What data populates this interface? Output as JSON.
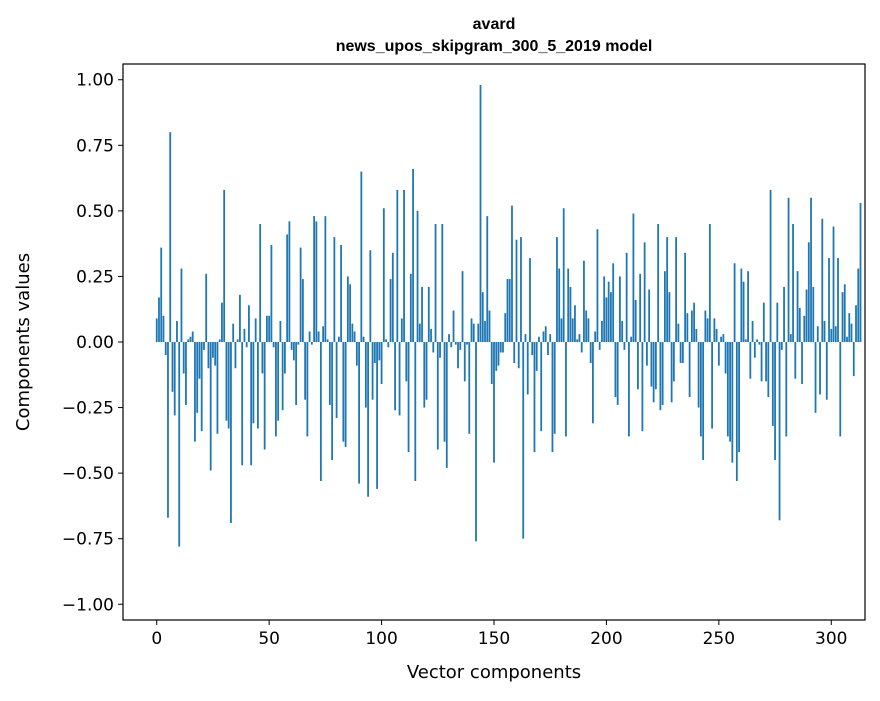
{
  "chart_data": {
    "type": "bar",
    "title": "avard",
    "subtitle": "news_upos_skipgram_300_5_2019 model",
    "xlabel": "Vector components",
    "ylabel": "Components values",
    "xlim": [
      -15,
      315
    ],
    "ylim": [
      -1.06,
      1.06
    ],
    "xticks": [
      0,
      50,
      100,
      150,
      200,
      250,
      300
    ],
    "xtick_labels": [
      "0",
      "50",
      "100",
      "150",
      "200",
      "250",
      "300"
    ],
    "yticks": [
      1.0,
      0.75,
      0.5,
      0.25,
      0.0,
      -0.25,
      -0.5,
      -0.75,
      -1.0
    ],
    "ytick_labels": [
      "1.00",
      "0.75",
      "0.50",
      "0.25",
      "0.00",
      "−0.25",
      "−0.50",
      "−0.75",
      "−1.00"
    ],
    "bar_color": "#1f77b4",
    "grid": false,
    "values": [
      0.09,
      0.17,
      0.36,
      0.1,
      -0.05,
      -0.67,
      0.8,
      -0.19,
      -0.28,
      0.08,
      -0.78,
      0.28,
      -0.12,
      -0.24,
      0.01,
      0.02,
      0.04,
      -0.38,
      -0.27,
      -0.14,
      -0.34,
      -0.03,
      0.26,
      -0.1,
      -0.49,
      -0.06,
      -0.09,
      -0.35,
      0.01,
      0.15,
      0.58,
      -0.3,
      -0.33,
      -0.69,
      0.07,
      -0.1,
      0.01,
      0.18,
      -0.47,
      0.05,
      -0.02,
      0.14,
      -0.47,
      -0.31,
      0.09,
      -0.33,
      0.45,
      -0.12,
      -0.41,
      0.1,
      0.1,
      0.37,
      -0.02,
      -0.36,
      -0.3,
      0.08,
      -0.26,
      -0.12,
      0.41,
      0.46,
      -0.03,
      -0.07,
      -0.24,
      -0.01,
      0.36,
      0.24,
      -0.22,
      -0.36,
      0.04,
      -0.01,
      0.48,
      0.46,
      0.04,
      -0.53,
      0.06,
      0.48,
      0.01,
      -0.24,
      -0.45,
      0.4,
      -0.29,
      0.02,
      0.37,
      -0.38,
      -0.4,
      0.25,
      0.22,
      0.07,
      0.04,
      -0.09,
      -0.54,
      0.65,
      0.02,
      -0.25,
      -0.59,
      0.35,
      -0.22,
      -0.08,
      -0.56,
      -0.07,
      -0.16,
      0.51,
      0.01,
      -0.02,
      0.24,
      0.34,
      -0.26,
      0.58,
      -0.28,
      0.09,
      0.58,
      -0.15,
      -0.42,
      0.26,
      0.66,
      -0.53,
      0.5,
      0.07,
      0.21,
      -0.25,
      -0.22,
      0.21,
      0.05,
      -0.04,
      0.45,
      -0.41,
      -0.06,
      0.45,
      -0.38,
      -0.48,
      0.03,
      -0.02,
      0.12,
      -0.01,
      -0.1,
      -0.03,
      0.27,
      -0.15,
      -0.01,
      -0.35,
      0.09,
      0.07,
      -0.76,
      0.07,
      0.98,
      0.19,
      0.08,
      0.48,
      0.12,
      -0.16,
      -0.46,
      -0.11,
      -0.09,
      -0.04,
      -0.04,
      0.11,
      0.24,
      0.24,
      0.52,
      -0.08,
      0.39,
      -0.1,
      0.4,
      -0.75,
      0.03,
      -0.2,
      0.32,
      -0.05,
      -0.42,
      -0.11,
      0.02,
      -0.34,
      0.04,
      0.06,
      -0.05,
      0.03,
      -0.42,
      -0.35,
      0.4,
      0.28,
      0.09,
      0.51,
      -0.36,
      0.28,
      0.21,
      0.09,
      0.14,
      0.01,
      0.03,
      -0.04,
      0.31,
      0.12,
      0.09,
      -0.08,
      -0.31,
      0.04,
      0.43,
      -0.03,
      0.08,
      0.25,
      0.17,
      0.23,
      0.19,
      0.3,
      -0.21,
      -0.24,
      0.25,
      0.08,
      -0.03,
      0.34,
      -0.36,
      0.02,
      0.49,
      0.16,
      -0.18,
      0.26,
      -0.34,
      0.38,
      -0.09,
      0.2,
      -0.17,
      -0.23,
      -0.18,
      0.45,
      -0.26,
      -0.24,
      0.27,
      0.4,
      0.19,
      -0.23,
      -0.15,
      0.4,
      0.07,
      -0.08,
      -0.08,
      0.34,
      0.11,
      -0.21,
      0.12,
      0.15,
      0.05,
      -0.25,
      -0.36,
      -0.45,
      0.12,
      0.09,
      0.45,
      -0.33,
      0.09,
      0.05,
      -0.09,
      0.02,
      0.03,
      -0.12,
      -0.36,
      -0.38,
      -0.46,
      0.3,
      -0.53,
      -0.42,
      0.28,
      0.23,
      0.01,
      0.27,
      -0.14,
      0.08,
      -0.06,
      0.01,
      -0.01,
      -0.15,
      0.15,
      -0.15,
      -0.21,
      0.58,
      -0.32,
      -0.45,
      0.15,
      -0.68,
      -0.03,
      0.21,
      -0.36,
      0.55,
      0.03,
      0.45,
      -0.14,
      0.27,
      0.13,
      -0.16,
      0.1,
      0.2,
      0.38,
      0.55,
      0.21,
      -0.27,
      0.06,
      -0.2,
      0.47,
      0.08,
      -0.22,
      0.32,
      0.05,
      0.44,
      0.06,
      0.32,
      -0.36,
      0.19,
      0.22,
      0.02,
      0.11,
      0.07,
      -0.13,
      0.14,
      0.28,
      0.53
    ]
  }
}
